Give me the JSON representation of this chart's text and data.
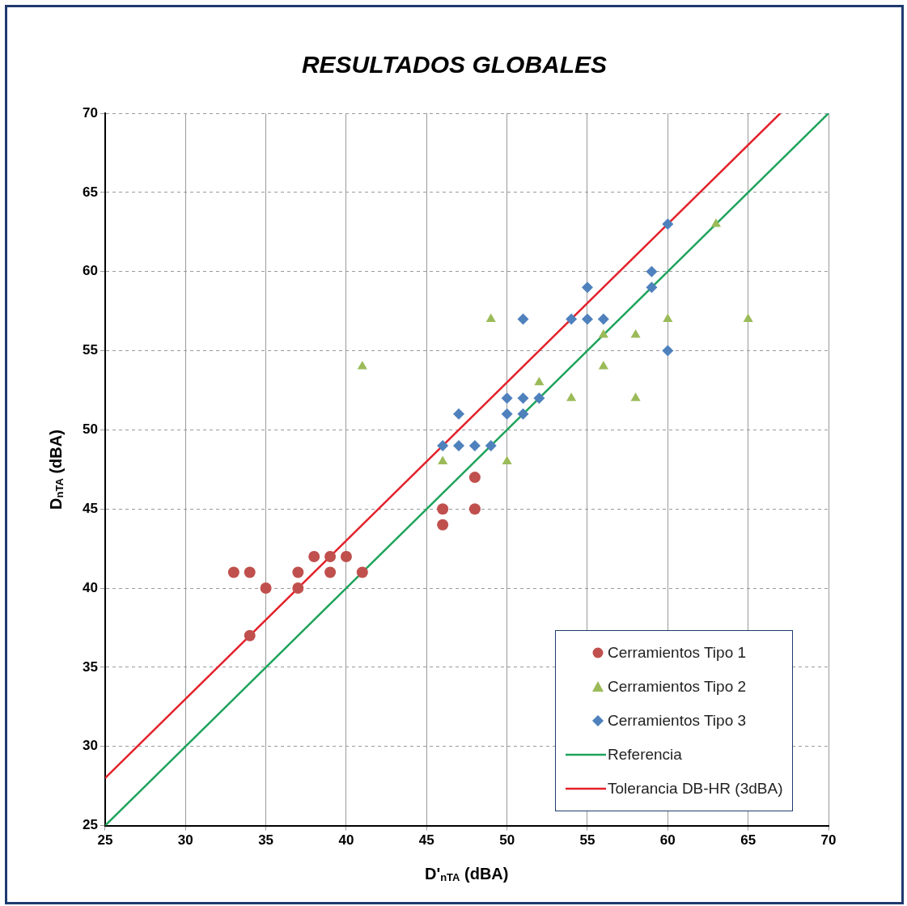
{
  "chart_data": {
    "type": "scatter",
    "title": "RESULTADOS GLOBALES",
    "xlabel": "D'$_{nTA}$ (dBA)",
    "ylabel": "D$_{nTA}$ (dBA)",
    "xlim": [
      25,
      70
    ],
    "ylim": [
      25,
      70
    ],
    "xticks": [
      25,
      30,
      35,
      40,
      45,
      50,
      55,
      60,
      65,
      70
    ],
    "yticks": [
      25,
      30,
      35,
      40,
      45,
      50,
      55,
      60,
      65,
      70
    ],
    "grid": true,
    "legend": "bottom right",
    "series": [
      {
        "name": "Cerramientos Tipo 1",
        "type": "scatter",
        "marker": "circle",
        "color": "#c0504d",
        "x": [
          33,
          34,
          35,
          34,
          37,
          37,
          38,
          39,
          39,
          40,
          41,
          46,
          46,
          48,
          48
        ],
        "values": [
          41,
          41,
          40,
          37,
          41,
          40,
          42,
          42,
          41,
          42,
          41,
          45,
          44,
          47,
          45
        ]
      },
      {
        "name": "Cerramientos Tipo 2",
        "type": "scatter",
        "marker": "triangle",
        "color": "#9bbb59",
        "x": [
          41,
          46,
          49,
          50,
          52,
          54,
          56,
          56,
          58,
          58,
          60,
          63,
          65
        ],
        "values": [
          54,
          48,
          57,
          48,
          53,
          52,
          56,
          54,
          56,
          52,
          57,
          63,
          57
        ]
      },
      {
        "name": "Cerramientos Tipo 3",
        "type": "scatter",
        "marker": "diamond",
        "color": "#4f81bd",
        "x": [
          46,
          47,
          47,
          48,
          49,
          50,
          50,
          51,
          51,
          51,
          52,
          54,
          55,
          55,
          56,
          59,
          59,
          60,
          60
        ],
        "values": [
          49,
          51,
          49,
          49,
          49,
          52,
          51,
          57,
          52,
          51,
          52,
          57,
          59,
          57,
          57,
          60,
          59,
          63,
          55
        ]
      },
      {
        "name": "Referencia",
        "type": "line",
        "marker": "none",
        "color": "#1fa35c",
        "x": [
          25,
          70
        ],
        "values": [
          25,
          70
        ]
      },
      {
        "name": "Tolerancia DB-HR (3dBA)",
        "type": "line",
        "marker": "none",
        "color": "#e3212b",
        "x": [
          25,
          67
        ],
        "values": [
          28,
          70
        ]
      }
    ]
  }
}
